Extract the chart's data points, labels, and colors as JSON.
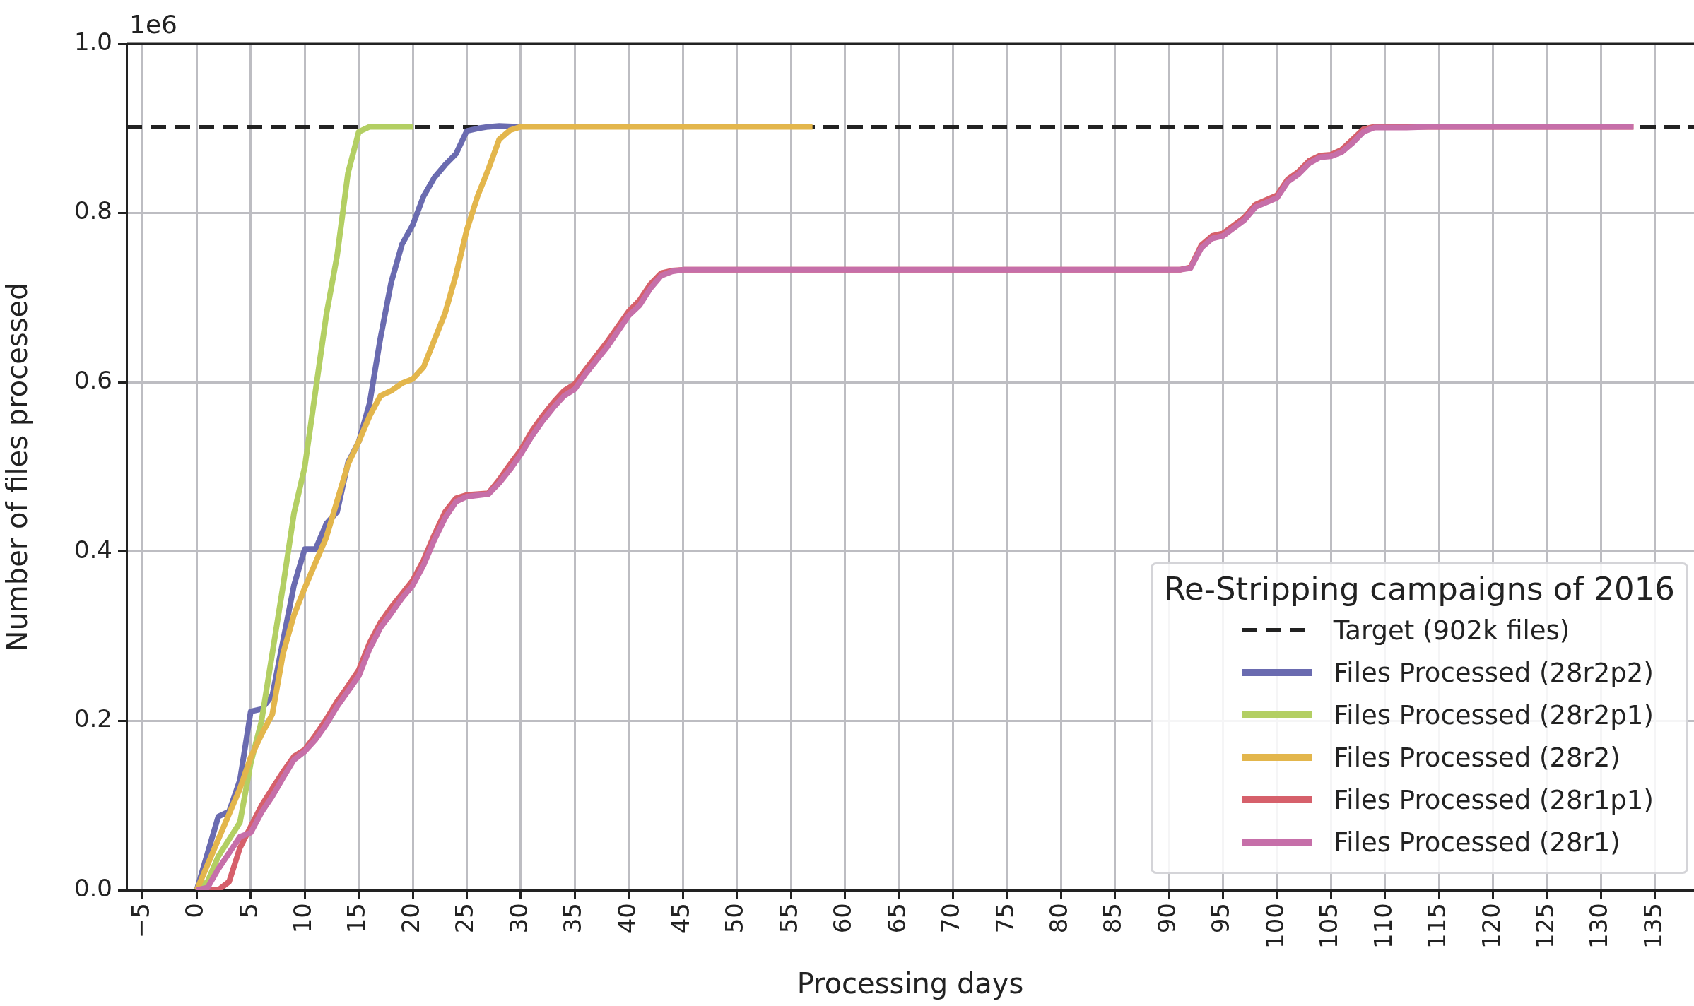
{
  "chart_data": {
    "type": "line",
    "xlabel": "Processing days",
    "ylabel": "Number of files processed",
    "legend_title": "Re-Stripping campaigns of 2016",
    "legend": "bottom right",
    "grid": true,
    "marker": "none",
    "line_style": "solid",
    "annotations": [
      "1e6"
    ],
    "xlim": [
      -6.5,
      138.6
    ],
    "xticks": [
      {
        "value": -5,
        "label": "−5"
      },
      0,
      5,
      10,
      15,
      20,
      25,
      30,
      35,
      40,
      45,
      50,
      55,
      60,
      65,
      70,
      75,
      80,
      85,
      90,
      95,
      100,
      105,
      110,
      115,
      120,
      125,
      130,
      135
    ],
    "ylim": [
      0,
      1
    ],
    "yticks": [
      {
        "value": 0,
        "label": "0.0"
      },
      0.2,
      0.4,
      0.6,
      0.8,
      {
        "value": 1,
        "label": "1.0"
      }
    ],
    "ref_lines": [
      {
        "axis": "y",
        "value": 0.902,
        "label": "Target (902k files)",
        "color": "#222222",
        "line_style": "dashed"
      }
    ],
    "series": [
      {
        "name": "Files Processed (28r2p2)",
        "color": "#6a6bb0",
        "x": [
          0,
          2,
          3,
          4,
          5,
          6,
          7,
          8,
          9,
          10,
          11,
          12,
          13,
          14,
          15,
          16,
          17,
          18,
          19,
          20,
          21,
          22,
          23,
          24,
          25,
          26,
          27,
          28,
          30
        ],
        "values": [
          0,
          0.087,
          0.093,
          0.13,
          0.211,
          0.214,
          0.23,
          0.295,
          0.36,
          0.403,
          0.403,
          0.433,
          0.447,
          0.505,
          0.53,
          0.575,
          0.652,
          0.718,
          0.763,
          0.786,
          0.82,
          0.842,
          0.857,
          0.87,
          0.897,
          0.9,
          0.902,
          0.903,
          0.902
        ]
      },
      {
        "name": "Files Processed (28r2p1)",
        "color": "#b3cf63",
        "x": [
          0,
          1,
          2,
          3,
          4,
          5,
          6,
          7,
          8,
          9,
          10,
          11,
          12,
          13,
          14,
          15,
          16,
          20
        ],
        "values": [
          0,
          0.01,
          0.04,
          0.06,
          0.08,
          0.15,
          0.2,
          0.28,
          0.36,
          0.445,
          0.5,
          0.59,
          0.68,
          0.75,
          0.847,
          0.896,
          0.902,
          0.902
        ]
      },
      {
        "name": "Files Processed (28r2)",
        "color": "#e3b64c",
        "x": [
          0,
          1,
          2,
          3,
          4,
          5,
          6,
          7,
          8,
          9,
          10,
          11,
          12,
          13,
          14,
          15,
          16,
          17,
          18,
          19,
          20,
          21,
          22,
          23,
          24,
          25,
          26,
          27,
          28,
          29,
          30,
          57
        ],
        "values": [
          0,
          0.03,
          0.06,
          0.09,
          0.12,
          0.157,
          0.184,
          0.208,
          0.28,
          0.325,
          0.357,
          0.387,
          0.417,
          0.46,
          0.503,
          0.53,
          0.56,
          0.584,
          0.59,
          0.599,
          0.604,
          0.618,
          0.65,
          0.682,
          0.727,
          0.78,
          0.82,
          0.852,
          0.887,
          0.898,
          0.902,
          0.902
        ]
      },
      {
        "name": "Files Processed (28r1p1)",
        "color": "#d6606b",
        "x": [
          0,
          1,
          2,
          3,
          4,
          5,
          6,
          7,
          8,
          9,
          10,
          11,
          12,
          13,
          14,
          15,
          16,
          17,
          18,
          19,
          20,
          21,
          22,
          23,
          24,
          25,
          27,
          28,
          29,
          30,
          31,
          32,
          33,
          34,
          35,
          36,
          38,
          40,
          41,
          42,
          43,
          44,
          45,
          50,
          60,
          70,
          80,
          91,
          92,
          93,
          94,
          95,
          97,
          98,
          100,
          101,
          102,
          103,
          104,
          105,
          106,
          107,
          108,
          109,
          112,
          114,
          125,
          133
        ],
        "values": [
          0,
          0,
          0,
          0.01,
          0.05,
          0.075,
          0.1,
          0.12,
          0.14,
          0.158,
          0.166,
          0.183,
          0.202,
          0.223,
          0.241,
          0.26,
          0.292,
          0.316,
          0.334,
          0.35,
          0.366,
          0.39,
          0.42,
          0.447,
          0.463,
          0.467,
          0.469,
          0.485,
          0.503,
          0.52,
          0.542,
          0.56,
          0.576,
          0.59,
          0.598,
          0.615,
          0.648,
          0.684,
          0.697,
          0.716,
          0.729,
          0.732,
          0.733,
          0.733,
          0.733,
          0.733,
          0.733,
          0.733,
          0.736,
          0.762,
          0.773,
          0.776,
          0.795,
          0.81,
          0.821,
          0.84,
          0.849,
          0.862,
          0.868,
          0.869,
          0.875,
          0.887,
          0.899,
          0.902,
          0.902,
          0.902,
          0.902,
          0.902
        ]
      },
      {
        "name": "Files Processed (28r1)",
        "color": "#c66fa9",
        "x": [
          0,
          1,
          2,
          3,
          4,
          5,
          6,
          7,
          8,
          9,
          10,
          11,
          12,
          13,
          14,
          15,
          16,
          17,
          18,
          19,
          20,
          21,
          22,
          23,
          24,
          25,
          27,
          28,
          29,
          30,
          31,
          32,
          33,
          34,
          35,
          36,
          38,
          40,
          41,
          42,
          43,
          44,
          45,
          50,
          60,
          70,
          80,
          91,
          92,
          93,
          94,
          95,
          97,
          98,
          100,
          101,
          102,
          103,
          104,
          105,
          106,
          107,
          108,
          109,
          112,
          114,
          125,
          133
        ],
        "values": [
          0,
          0.003,
          0.025,
          0.044,
          0.063,
          0.068,
          0.092,
          0.111,
          0.133,
          0.154,
          0.164,
          0.178,
          0.196,
          0.217,
          0.235,
          0.253,
          0.285,
          0.31,
          0.327,
          0.345,
          0.36,
          0.384,
          0.414,
          0.44,
          0.459,
          0.465,
          0.468,
          0.481,
          0.497,
          0.515,
          0.536,
          0.554,
          0.57,
          0.584,
          0.592,
          0.61,
          0.642,
          0.679,
          0.691,
          0.711,
          0.726,
          0.731,
          0.733,
          0.733,
          0.733,
          0.733,
          0.733,
          0.733,
          0.735,
          0.759,
          0.77,
          0.773,
          0.792,
          0.807,
          0.818,
          0.837,
          0.846,
          0.859,
          0.866,
          0.867,
          0.872,
          0.883,
          0.896,
          0.901,
          0.901,
          0.902,
          0.902,
          0.902
        ]
      }
    ]
  }
}
